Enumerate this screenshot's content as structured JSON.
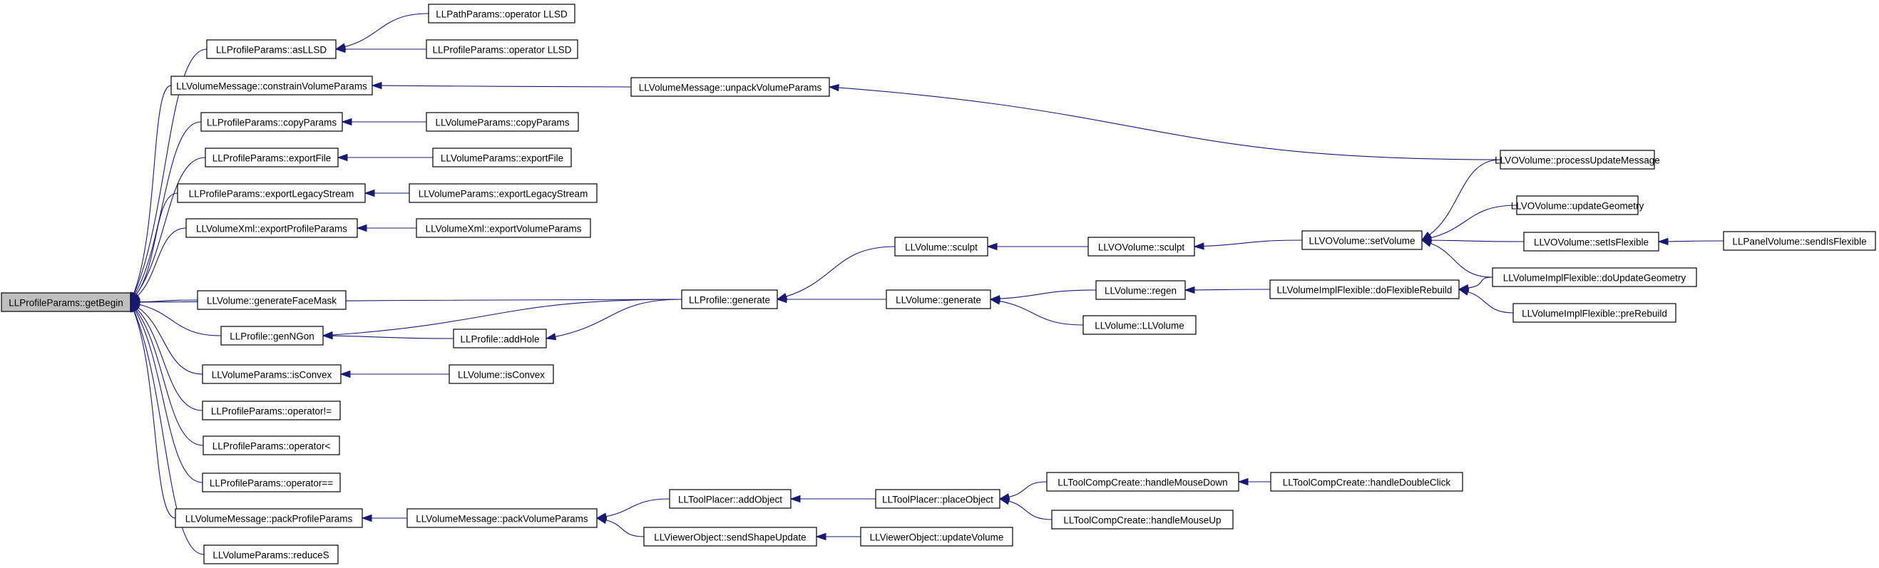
{
  "graph": {
    "type": "caller-graph",
    "root": "getBegin",
    "colors": {
      "edge": "#191970",
      "root_fill": "#bfbfbf",
      "node_fill": "#ffffff",
      "node_border": "#000000"
    },
    "nodes": [
      {
        "id": "getBegin",
        "label": "LLProfileParams::getBegin",
        "root": true
      },
      {
        "id": "pp_asLLSD",
        "label": "LLProfileParams::asLLSD"
      },
      {
        "id": "path_opLLSD",
        "label": "LLPathParams::operator LLSD"
      },
      {
        "id": "pp_opLLSD",
        "label": "LLProfileParams::operator LLSD"
      },
      {
        "id": "vm_constrain",
        "label": "LLVolumeMessage::constrainVolumeParams"
      },
      {
        "id": "vm_unpack",
        "label": "LLVolumeMessage::unpackVolumeParams"
      },
      {
        "id": "pp_copy",
        "label": "LLProfileParams::copyParams"
      },
      {
        "id": "vp_copy",
        "label": "LLVolumeParams::copyParams"
      },
      {
        "id": "pp_export",
        "label": "LLProfileParams::exportFile"
      },
      {
        "id": "vp_export",
        "label": "LLVolumeParams::exportFile"
      },
      {
        "id": "pp_legacy",
        "label": "LLProfileParams::exportLegacyStream"
      },
      {
        "id": "vp_legacy",
        "label": "LLVolumeParams::exportLegacyStream"
      },
      {
        "id": "vx_profile",
        "label": "LLVolumeXml::exportProfileParams"
      },
      {
        "id": "vx_volume",
        "label": "LLVolumeXml::exportVolumeParams"
      },
      {
        "id": "vol_genface",
        "label": "LLVolume::generateFaceMask"
      },
      {
        "id": "prof_genngon",
        "label": "LLProfile::genNGon"
      },
      {
        "id": "prof_addhole",
        "label": "LLProfile::addHole"
      },
      {
        "id": "prof_generate",
        "label": "LLProfile::generate"
      },
      {
        "id": "vol_sculpt",
        "label": "LLVolume::sculpt"
      },
      {
        "id": "vo_sculpt",
        "label": "LLVOVolume::sculpt"
      },
      {
        "id": "vo_setvolume",
        "label": "LLVOVolume::setVolume"
      },
      {
        "id": "vo_process",
        "label": "LLVOVolume::processUpdateMessage"
      },
      {
        "id": "vo_updgeom",
        "label": "LLVOVolume::updateGeometry"
      },
      {
        "id": "vo_setflex",
        "label": "LLVOVolume::setIsFlexible"
      },
      {
        "id": "panel_sendflex",
        "label": "LLPanelVolume::sendIsFlexible"
      },
      {
        "id": "vif_doupd",
        "label": "LLVolumeImplFlexible::doUpdateGeometry"
      },
      {
        "id": "vif_dorebuild",
        "label": "LLVolumeImplFlexible::doFlexibleRebuild"
      },
      {
        "id": "vif_prerebuild",
        "label": "LLVolumeImplFlexible::preRebuild"
      },
      {
        "id": "vol_generate",
        "label": "LLVolume::generate"
      },
      {
        "id": "vol_regen",
        "label": "LLVolume::regen"
      },
      {
        "id": "vol_ctor",
        "label": "LLVolume::LLVolume"
      },
      {
        "id": "vp_isconvex",
        "label": "LLVolumeParams::isConvex"
      },
      {
        "id": "vol_isconvex",
        "label": "LLVolume::isConvex"
      },
      {
        "id": "pp_opneq",
        "label": "LLProfileParams::operator!="
      },
      {
        "id": "pp_oplt",
        "label": "LLProfileParams::operator<"
      },
      {
        "id": "pp_opeq",
        "label": "LLProfileParams::operator=="
      },
      {
        "id": "vm_packprofile",
        "label": "LLVolumeMessage::packProfileParams"
      },
      {
        "id": "vm_packvolume",
        "label": "LLVolumeMessage::packVolumeParams"
      },
      {
        "id": "tp_addobj",
        "label": "LLToolPlacer::addObject"
      },
      {
        "id": "tp_placeobj",
        "label": "LLToolPlacer::placeObject"
      },
      {
        "id": "tcc_mousedown",
        "label": "LLToolCompCreate::handleMouseDown"
      },
      {
        "id": "tcc_dblclick",
        "label": "LLToolCompCreate::handleDoubleClick"
      },
      {
        "id": "tcc_mouseup",
        "label": "LLToolCompCreate::handleMouseUp"
      },
      {
        "id": "vwo_sendshape",
        "label": "LLViewerObject::sendShapeUpdate"
      },
      {
        "id": "vwo_updvol",
        "label": "LLViewerObject::updateVolume"
      },
      {
        "id": "vol_reduces",
        "label": "LLVolumeParams::reduceS"
      }
    ],
    "edges": [
      {
        "from": "pp_asLLSD",
        "to": "getBegin"
      },
      {
        "from": "path_opLLSD",
        "to": "pp_asLLSD"
      },
      {
        "from": "pp_opLLSD",
        "to": "pp_asLLSD"
      },
      {
        "from": "vm_constrain",
        "to": "getBegin"
      },
      {
        "from": "vm_unpack",
        "to": "vm_constrain"
      },
      {
        "from": "vo_process",
        "to": "vm_unpack"
      },
      {
        "from": "pp_copy",
        "to": "getBegin"
      },
      {
        "from": "vp_copy",
        "to": "pp_copy"
      },
      {
        "from": "pp_export",
        "to": "getBegin"
      },
      {
        "from": "vp_export",
        "to": "pp_export"
      },
      {
        "from": "pp_legacy",
        "to": "getBegin"
      },
      {
        "from": "vp_legacy",
        "to": "pp_legacy"
      },
      {
        "from": "vx_profile",
        "to": "getBegin"
      },
      {
        "from": "vx_volume",
        "to": "vx_profile"
      },
      {
        "from": "prof_generate",
        "to": "getBegin"
      },
      {
        "from": "vol_genface",
        "to": "getBegin"
      },
      {
        "from": "prof_genngon",
        "to": "getBegin"
      },
      {
        "from": "prof_generate",
        "to": "prof_genngon"
      },
      {
        "from": "prof_addhole",
        "to": "prof_genngon"
      },
      {
        "from": "prof_generate",
        "to": "prof_addhole"
      },
      {
        "from": "vol_sculpt",
        "to": "prof_generate"
      },
      {
        "from": "vol_generate",
        "to": "prof_generate"
      },
      {
        "from": "vo_sculpt",
        "to": "vol_sculpt"
      },
      {
        "from": "vo_setvolume",
        "to": "vo_sculpt"
      },
      {
        "from": "vo_process",
        "to": "vo_setvolume"
      },
      {
        "from": "vo_updgeom",
        "to": "vo_setvolume"
      },
      {
        "from": "vo_setflex",
        "to": "vo_setvolume"
      },
      {
        "from": "vif_doupd",
        "to": "vo_setvolume"
      },
      {
        "from": "panel_sendflex",
        "to": "vo_setflex"
      },
      {
        "from": "vol_regen",
        "to": "vol_generate"
      },
      {
        "from": "vol_ctor",
        "to": "vol_generate"
      },
      {
        "from": "vif_dorebuild",
        "to": "vol_regen"
      },
      {
        "from": "vif_doupd",
        "to": "vif_dorebuild"
      },
      {
        "from": "vif_prerebuild",
        "to": "vif_dorebuild"
      },
      {
        "from": "vp_isconvex",
        "to": "getBegin"
      },
      {
        "from": "vol_isconvex",
        "to": "vp_isconvex"
      },
      {
        "from": "pp_opneq",
        "to": "getBegin"
      },
      {
        "from": "pp_oplt",
        "to": "getBegin"
      },
      {
        "from": "pp_opeq",
        "to": "getBegin"
      },
      {
        "from": "vm_packprofile",
        "to": "getBegin"
      },
      {
        "from": "vm_packvolume",
        "to": "vm_packprofile"
      },
      {
        "from": "tp_addobj",
        "to": "vm_packvolume"
      },
      {
        "from": "vwo_sendshape",
        "to": "vm_packvolume"
      },
      {
        "from": "tp_placeobj",
        "to": "tp_addobj"
      },
      {
        "from": "tcc_mousedown",
        "to": "tp_placeobj"
      },
      {
        "from": "tcc_mouseup",
        "to": "tp_placeobj"
      },
      {
        "from": "tcc_dblclick",
        "to": "tcc_mousedown"
      },
      {
        "from": "vwo_updvol",
        "to": "vwo_sendshape"
      },
      {
        "from": "vol_reduces",
        "to": "getBegin"
      }
    ]
  }
}
